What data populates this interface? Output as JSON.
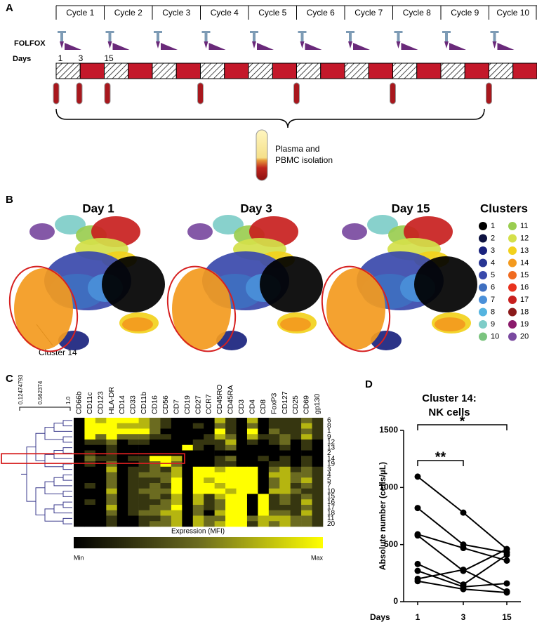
{
  "panel_a": {
    "label": "A",
    "cycles": [
      "Cycle 1",
      "Cycle 2",
      "Cycle 3",
      "Cycle 4",
      "Cycle 5",
      "Cycle 6",
      "Cycle 7",
      "Cycle 8",
      "Cycle 9",
      "Cycle 10"
    ],
    "regimen": "FOLFOX",
    "days_label": "Days",
    "days": [
      "1",
      "3",
      "15"
    ],
    "sample_text": [
      "Plasma and",
      "PBMC isolation"
    ]
  },
  "panel_b": {
    "label": "B",
    "titles": [
      "Day 1",
      "Day 3",
      "Day 15"
    ],
    "legend_title": "Clusters",
    "annotation": "Cluster 14",
    "clusters": [
      {
        "name": "1",
        "color": "#000000"
      },
      {
        "name": "2",
        "color": "#0d1240"
      },
      {
        "name": "3",
        "color": "#1a237e"
      },
      {
        "name": "4",
        "color": "#283593"
      },
      {
        "name": "5",
        "color": "#3949ab"
      },
      {
        "name": "6",
        "color": "#3f6fc0"
      },
      {
        "name": "7",
        "color": "#4a90d9"
      },
      {
        "name": "8",
        "color": "#55b4e0"
      },
      {
        "name": "9",
        "color": "#7ecdc8"
      },
      {
        "name": "10",
        "color": "#7bc47f"
      },
      {
        "name": "11",
        "color": "#9acd50"
      },
      {
        "name": "12",
        "color": "#d4e04a"
      },
      {
        "name": "13",
        "color": "#f2d11c"
      },
      {
        "name": "14",
        "color": "#f39a1e"
      },
      {
        "name": "15",
        "color": "#f06b20"
      },
      {
        "name": "16",
        "color": "#e8321e"
      },
      {
        "name": "17",
        "color": "#c8201e"
      },
      {
        "name": "18",
        "color": "#8b1a1a"
      },
      {
        "name": "19",
        "color": "#8b1a6b"
      },
      {
        "name": "20",
        "color": "#7a4aa0"
      }
    ]
  },
  "panel_c": {
    "label": "C",
    "scale": [
      "0.12474793",
      "0.562374",
      "1.0"
    ],
    "markers": [
      "CD66b",
      "CD11c",
      "CD123",
      "HLA-DR",
      "CD14",
      "CD33",
      "CD11b",
      "CD16",
      "CD56",
      "CD7",
      "CD19",
      "CD27",
      "CCR7",
      "CD45RO",
      "CD45RA",
      "CD3",
      "CD4",
      "CD8",
      "FoxP3",
      "CD127",
      "CD25",
      "CD69",
      "gp130"
    ],
    "rows": [
      "6",
      "8",
      "1",
      "9",
      "12",
      "13",
      "2",
      "14",
      "19",
      "3",
      "4",
      "5",
      "7",
      "10",
      "15",
      "16",
      "17",
      "18",
      "11",
      "20"
    ],
    "matrix": [
      [
        0,
        4,
        3,
        4,
        4,
        4,
        3,
        2,
        1,
        0,
        0,
        0,
        0,
        3,
        1,
        0,
        3,
        0,
        1,
        1,
        1,
        2,
        1
      ],
      [
        0,
        4,
        4,
        4,
        3,
        3,
        3,
        2,
        1,
        0,
        0,
        1,
        0,
        2,
        1,
        0,
        2,
        0,
        1,
        1,
        1,
        3,
        1
      ],
      [
        0,
        4,
        4,
        4,
        4,
        4,
        4,
        2,
        0,
        0,
        0,
        0,
        0,
        4,
        1,
        0,
        4,
        0,
        2,
        1,
        1,
        2,
        1
      ],
      [
        0,
        4,
        2,
        4,
        2,
        2,
        2,
        1,
        1,
        0,
        0,
        0,
        1,
        3,
        2,
        0,
        3,
        1,
        1,
        2,
        1,
        3,
        1
      ],
      [
        0,
        1,
        1,
        2,
        0,
        1,
        1,
        0,
        0,
        0,
        0,
        1,
        1,
        1,
        3,
        0,
        1,
        0,
        1,
        2,
        0,
        1,
        0
      ],
      [
        0,
        0,
        0,
        1,
        0,
        0,
        0,
        0,
        0,
        0,
        4,
        1,
        0,
        1,
        2,
        0,
        0,
        0,
        0,
        1,
        0,
        1,
        0
      ],
      [
        0,
        1,
        0,
        1,
        0,
        0,
        0,
        0,
        0,
        0,
        0,
        0,
        0,
        0,
        0,
        0,
        0,
        0,
        0,
        0,
        0,
        0,
        0
      ],
      [
        0,
        2,
        1,
        1,
        0,
        1,
        1,
        4,
        4,
        3,
        0,
        0,
        0,
        1,
        2,
        0,
        0,
        1,
        0,
        1,
        0,
        1,
        0
      ],
      [
        0,
        1,
        0,
        2,
        0,
        0,
        1,
        2,
        4,
        2,
        0,
        0,
        0,
        1,
        1,
        0,
        0,
        0,
        1,
        1,
        0,
        1,
        0
      ],
      [
        0,
        0,
        0,
        3,
        0,
        1,
        1,
        2,
        1,
        3,
        0,
        4,
        4,
        3,
        4,
        4,
        4,
        0,
        2,
        3,
        1,
        2,
        1
      ],
      [
        0,
        0,
        0,
        2,
        0,
        1,
        2,
        2,
        2,
        3,
        0,
        4,
        4,
        4,
        4,
        4,
        4,
        0,
        3,
        3,
        2,
        2,
        1
      ],
      [
        0,
        0,
        0,
        2,
        0,
        1,
        1,
        1,
        2,
        4,
        0,
        4,
        3,
        4,
        4,
        4,
        4,
        0,
        2,
        3,
        2,
        3,
        1
      ],
      [
        0,
        1,
        0,
        2,
        0,
        1,
        1,
        2,
        1,
        4,
        0,
        4,
        4,
        3,
        4,
        4,
        4,
        0,
        2,
        3,
        1,
        2,
        1
      ],
      [
        0,
        0,
        0,
        3,
        0,
        1,
        2,
        2,
        2,
        4,
        0,
        4,
        4,
        4,
        3,
        4,
        4,
        0,
        3,
        3,
        2,
        1,
        1
      ],
      [
        0,
        0,
        0,
        2,
        0,
        1,
        1,
        2,
        1,
        3,
        0,
        3,
        1,
        3,
        4,
        4,
        0,
        4,
        1,
        2,
        1,
        2,
        1
      ],
      [
        0,
        1,
        0,
        2,
        0,
        1,
        1,
        1,
        2,
        3,
        0,
        3,
        1,
        2,
        4,
        4,
        0,
        4,
        1,
        2,
        1,
        3,
        1
      ],
      [
        0,
        0,
        0,
        3,
        0,
        1,
        1,
        2,
        2,
        4,
        0,
        2,
        1,
        2,
        4,
        4,
        0,
        4,
        1,
        1,
        1,
        2,
        1
      ],
      [
        0,
        0,
        0,
        2,
        0,
        1,
        2,
        2,
        3,
        3,
        0,
        2,
        0,
        3,
        4,
        4,
        0,
        4,
        2,
        2,
        1,
        3,
        1
      ],
      [
        0,
        0,
        0,
        1,
        0,
        0,
        1,
        1,
        2,
        3,
        0,
        3,
        2,
        2,
        4,
        4,
        2,
        3,
        3,
        3,
        2,
        2,
        1
      ],
      [
        0,
        0,
        0,
        1,
        0,
        0,
        1,
        2,
        2,
        3,
        0,
        3,
        2,
        3,
        4,
        4,
        1,
        3,
        2,
        3,
        2,
        2,
        1
      ]
    ],
    "colorbar_label": "Expression (MFI)",
    "colorbar_min": "Min",
    "colorbar_max": "Max"
  },
  "chart_data": {
    "type": "line",
    "label": "D",
    "title": "Cluster 14:",
    "subtitle": "NK cells",
    "y_label": "Absolute number (cells/µL)",
    "x_label": "Days",
    "categories": [
      "1",
      "3",
      "15"
    ],
    "color": "#000000",
    "series": [
      {
        "values": [
          1095,
          780,
          460
        ]
      },
      {
        "values": [
          820,
          500,
          430
        ]
      },
      {
        "values": [
          590,
          470,
          360
        ]
      },
      {
        "values": [
          580,
          270,
          460
        ]
      },
      {
        "values": [
          330,
          150,
          410
        ]
      },
      {
        "values": [
          270,
          130,
          160
        ]
      },
      {
        "values": [
          200,
          280,
          90
        ]
      },
      {
        "values": [
          180,
          110,
          80
        ]
      }
    ],
    "ylim": [
      0,
      1500
    ],
    "yticks": [
      0,
      500,
      1000,
      1500
    ],
    "annotations": [
      "**",
      "*"
    ]
  }
}
